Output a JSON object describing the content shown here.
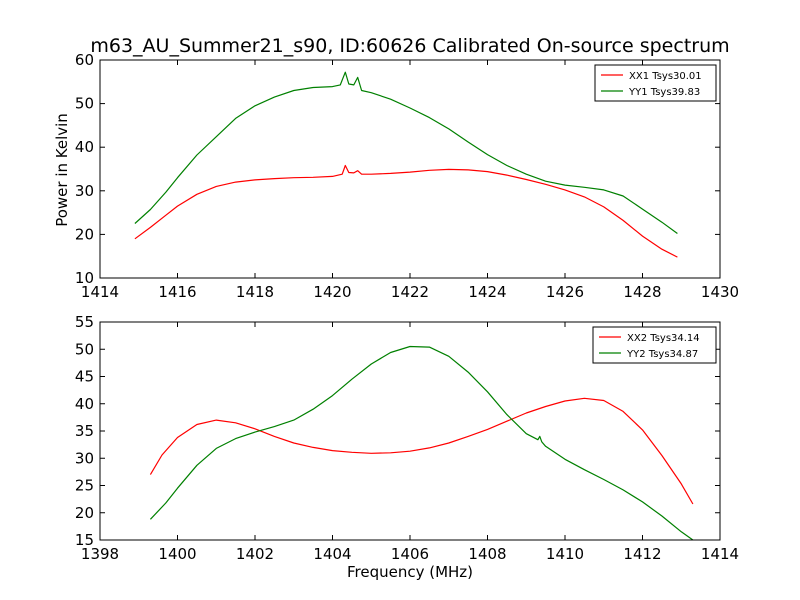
{
  "title": "m63_AU_Summer21_s90, ID:60626 Calibrated On-source spectrum",
  "colors": {
    "xx": "#ff0000",
    "yy": "#008000"
  },
  "chart_data": [
    {
      "type": "line",
      "title": "m63_AU_Summer21_s90, ID:60626 Calibrated On-source spectrum",
      "xlabel": "",
      "ylabel": "Power in Kelvin",
      "xlim": [
        1414,
        1430
      ],
      "ylim": [
        10,
        60
      ],
      "xticks": [
        1414,
        1416,
        1418,
        1420,
        1422,
        1424,
        1426,
        1428,
        1430
      ],
      "yticks": [
        10,
        20,
        30,
        40,
        50,
        60
      ],
      "grid": false,
      "legend_position": "top-right",
      "series": [
        {
          "name": "XX1 Tsys30.01",
          "color": "#ff0000",
          "points": [
            [
              1414.9,
              19
            ],
            [
              1415.3,
              21.6
            ],
            [
              1415.7,
              24.4
            ],
            [
              1416.0,
              26.5
            ],
            [
              1416.5,
              29.2
            ],
            [
              1417.0,
              31.0
            ],
            [
              1417.5,
              32.0
            ],
            [
              1418.0,
              32.5
            ],
            [
              1418.5,
              32.8
            ],
            [
              1419.0,
              33.0
            ],
            [
              1419.5,
              33.1
            ],
            [
              1420.0,
              33.3
            ],
            [
              1420.25,
              33.8
            ],
            [
              1420.33,
              35.8
            ],
            [
              1420.42,
              34.2
            ],
            [
              1420.55,
              34.1
            ],
            [
              1420.65,
              34.6
            ],
            [
              1420.75,
              33.8
            ],
            [
              1421.0,
              33.8
            ],
            [
              1421.5,
              34.0
            ],
            [
              1422.0,
              34.3
            ],
            [
              1422.5,
              34.7
            ],
            [
              1423.0,
              34.9
            ],
            [
              1423.5,
              34.8
            ],
            [
              1424.0,
              34.4
            ],
            [
              1424.5,
              33.6
            ],
            [
              1425.0,
              32.6
            ],
            [
              1425.5,
              31.5
            ],
            [
              1426.0,
              30.2
            ],
            [
              1426.5,
              28.6
            ],
            [
              1427.0,
              26.3
            ],
            [
              1427.5,
              23.2
            ],
            [
              1428.0,
              19.6
            ],
            [
              1428.5,
              16.6
            ],
            [
              1428.9,
              14.8
            ]
          ]
        },
        {
          "name": "YY1 Tsys39.83",
          "color": "#008000",
          "points": [
            [
              1414.9,
              22.5
            ],
            [
              1415.3,
              25.7
            ],
            [
              1415.7,
              29.7
            ],
            [
              1416.0,
              33.0
            ],
            [
              1416.5,
              38.2
            ],
            [
              1417.0,
              42.4
            ],
            [
              1417.5,
              46.6
            ],
            [
              1418.0,
              49.5
            ],
            [
              1418.5,
              51.5
            ],
            [
              1419.0,
              53.0
            ],
            [
              1419.5,
              53.7
            ],
            [
              1420.0,
              53.9
            ],
            [
              1420.2,
              54.3
            ],
            [
              1420.33,
              57.2
            ],
            [
              1420.42,
              54.5
            ],
            [
              1420.55,
              54.3
            ],
            [
              1420.65,
              56.0
            ],
            [
              1420.75,
              53.0
            ],
            [
              1421.0,
              52.5
            ],
            [
              1421.5,
              51.0
            ],
            [
              1422.0,
              49.0
            ],
            [
              1422.5,
              46.8
            ],
            [
              1423.0,
              44.2
            ],
            [
              1423.5,
              41.2
            ],
            [
              1424.0,
              38.3
            ],
            [
              1424.5,
              35.8
            ],
            [
              1425.0,
              33.8
            ],
            [
              1425.5,
              32.2
            ],
            [
              1426.0,
              31.3
            ],
            [
              1426.5,
              30.8
            ],
            [
              1427.0,
              30.2
            ],
            [
              1427.5,
              28.8
            ],
            [
              1428.0,
              25.8
            ],
            [
              1428.5,
              22.8
            ],
            [
              1428.9,
              20.2
            ]
          ]
        }
      ]
    },
    {
      "type": "line",
      "title": "",
      "xlabel": "Frequency (MHz)",
      "ylabel": "",
      "xlim": [
        1398,
        1414
      ],
      "ylim": [
        15,
        55
      ],
      "xticks": [
        1398,
        1400,
        1402,
        1404,
        1406,
        1408,
        1410,
        1412,
        1414
      ],
      "yticks": [
        15,
        20,
        25,
        30,
        35,
        40,
        45,
        50,
        55
      ],
      "grid": false,
      "legend_position": "top-right",
      "series": [
        {
          "name": "XX2 Tsys34.14",
          "color": "#ff0000",
          "points": [
            [
              1399.3,
              27
            ],
            [
              1399.6,
              30.6
            ],
            [
              1400.0,
              33.8
            ],
            [
              1400.5,
              36.2
            ],
            [
              1401.0,
              37.0
            ],
            [
              1401.5,
              36.5
            ],
            [
              1402.0,
              35.4
            ],
            [
              1402.5,
              34.0
            ],
            [
              1403.0,
              32.8
            ],
            [
              1403.5,
              32.0
            ],
            [
              1404.0,
              31.4
            ],
            [
              1404.5,
              31.1
            ],
            [
              1405.0,
              30.9
            ],
            [
              1405.5,
              31.0
            ],
            [
              1406.0,
              31.3
            ],
            [
              1406.5,
              31.9
            ],
            [
              1407.0,
              32.8
            ],
            [
              1407.5,
              34.0
            ],
            [
              1408.0,
              35.3
            ],
            [
              1408.5,
              36.8
            ],
            [
              1409.0,
              38.3
            ],
            [
              1409.5,
              39.5
            ],
            [
              1410.0,
              40.5
            ],
            [
              1410.5,
              41.0
            ],
            [
              1411.0,
              40.6
            ],
            [
              1411.5,
              38.6
            ],
            [
              1412.0,
              35.2
            ],
            [
              1412.5,
              30.5
            ],
            [
              1413.0,
              25.3
            ],
            [
              1413.3,
              21.6
            ]
          ]
        },
        {
          "name": "YY2 Tsys34.87",
          "color": "#008000",
          "points": [
            [
              1399.3,
              18.8
            ],
            [
              1399.7,
              21.8
            ],
            [
              1400.0,
              24.5
            ],
            [
              1400.5,
              28.7
            ],
            [
              1401.0,
              31.8
            ],
            [
              1401.5,
              33.6
            ],
            [
              1402.0,
              34.8
            ],
            [
              1402.5,
              35.8
            ],
            [
              1403.0,
              37.0
            ],
            [
              1403.5,
              39.0
            ],
            [
              1404.0,
              41.5
            ],
            [
              1404.5,
              44.5
            ],
            [
              1405.0,
              47.3
            ],
            [
              1405.5,
              49.4
            ],
            [
              1406.0,
              50.5
            ],
            [
              1406.5,
              50.4
            ],
            [
              1407.0,
              48.7
            ],
            [
              1407.5,
              45.8
            ],
            [
              1408.0,
              42.2
            ],
            [
              1408.5,
              38.0
            ],
            [
              1409.0,
              34.5
            ],
            [
              1409.3,
              33.4
            ],
            [
              1409.35,
              34.0
            ],
            [
              1409.4,
              33.0
            ],
            [
              1409.5,
              32.2
            ],
            [
              1410.0,
              29.8
            ],
            [
              1410.5,
              27.9
            ],
            [
              1411.0,
              26.1
            ],
            [
              1411.5,
              24.2
            ],
            [
              1412.0,
              22.0
            ],
            [
              1412.5,
              19.4
            ],
            [
              1413.0,
              16.5
            ],
            [
              1413.3,
              15.0
            ]
          ]
        }
      ]
    }
  ]
}
